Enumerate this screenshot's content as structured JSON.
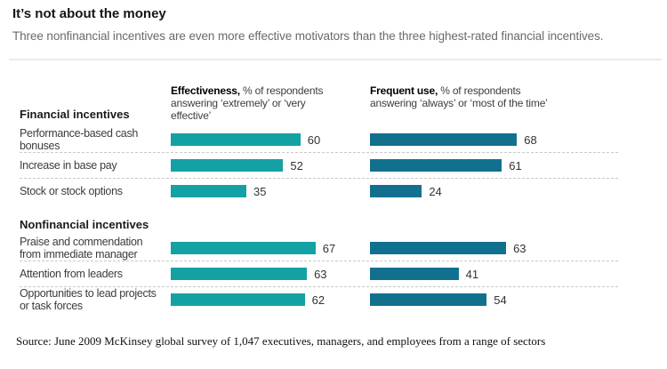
{
  "header": {
    "title": "It’s not about the money",
    "subtitle": "Three nonfinancial incentives are even more effective motivators than the three highest-rated financial incentives."
  },
  "colors": {
    "effectiveness_bar": "#14a1a4",
    "frequent_use_bar": "#12708f"
  },
  "chart_data": {
    "type": "bar",
    "orientation": "horizontal",
    "value_unit": "% of respondents",
    "xlim": [
      0,
      100
    ],
    "grid": "dashed row separators",
    "column_headers": [
      {
        "bold": "Effectiveness,",
        "line1": " % of respondents",
        "line2": "answering ‘extremely’ or ‘very",
        "line3": "effective’"
      },
      {
        "bold": "Frequent use,",
        "line1": " % of respondents",
        "line2": "answering ‘always’ or ‘most of the time’",
        "line3": ""
      }
    ],
    "series": [
      {
        "name": "Effectiveness",
        "values": [
          60,
          52,
          35,
          67,
          63,
          62
        ]
      },
      {
        "name": "Frequent use",
        "values": [
          68,
          61,
          24,
          63,
          41,
          54
        ]
      }
    ],
    "groups": [
      {
        "label": "Financial incentives",
        "rows": [
          {
            "category": "Performance-based cash bonuses",
            "effectiveness": 60,
            "frequent_use": 68
          },
          {
            "category": "Increase in base pay",
            "effectiveness": 52,
            "frequent_use": 61
          },
          {
            "category": "Stock or stock options",
            "effectiveness": 35,
            "frequent_use": 24
          }
        ]
      },
      {
        "label": "Nonfinancial incentives",
        "rows": [
          {
            "category": "Praise and commendation from immediate manager",
            "effectiveness": 67,
            "frequent_use": 63
          },
          {
            "category": "Attention from leaders",
            "effectiveness": 63,
            "frequent_use": 41
          },
          {
            "category": "Opportunities to lead projects or task forces",
            "effectiveness": 62,
            "frequent_use": 54
          }
        ]
      }
    ]
  },
  "source": "Source: June 2009 McKinsey global survey of 1,047 executives, managers, and employees from a range of sectors"
}
